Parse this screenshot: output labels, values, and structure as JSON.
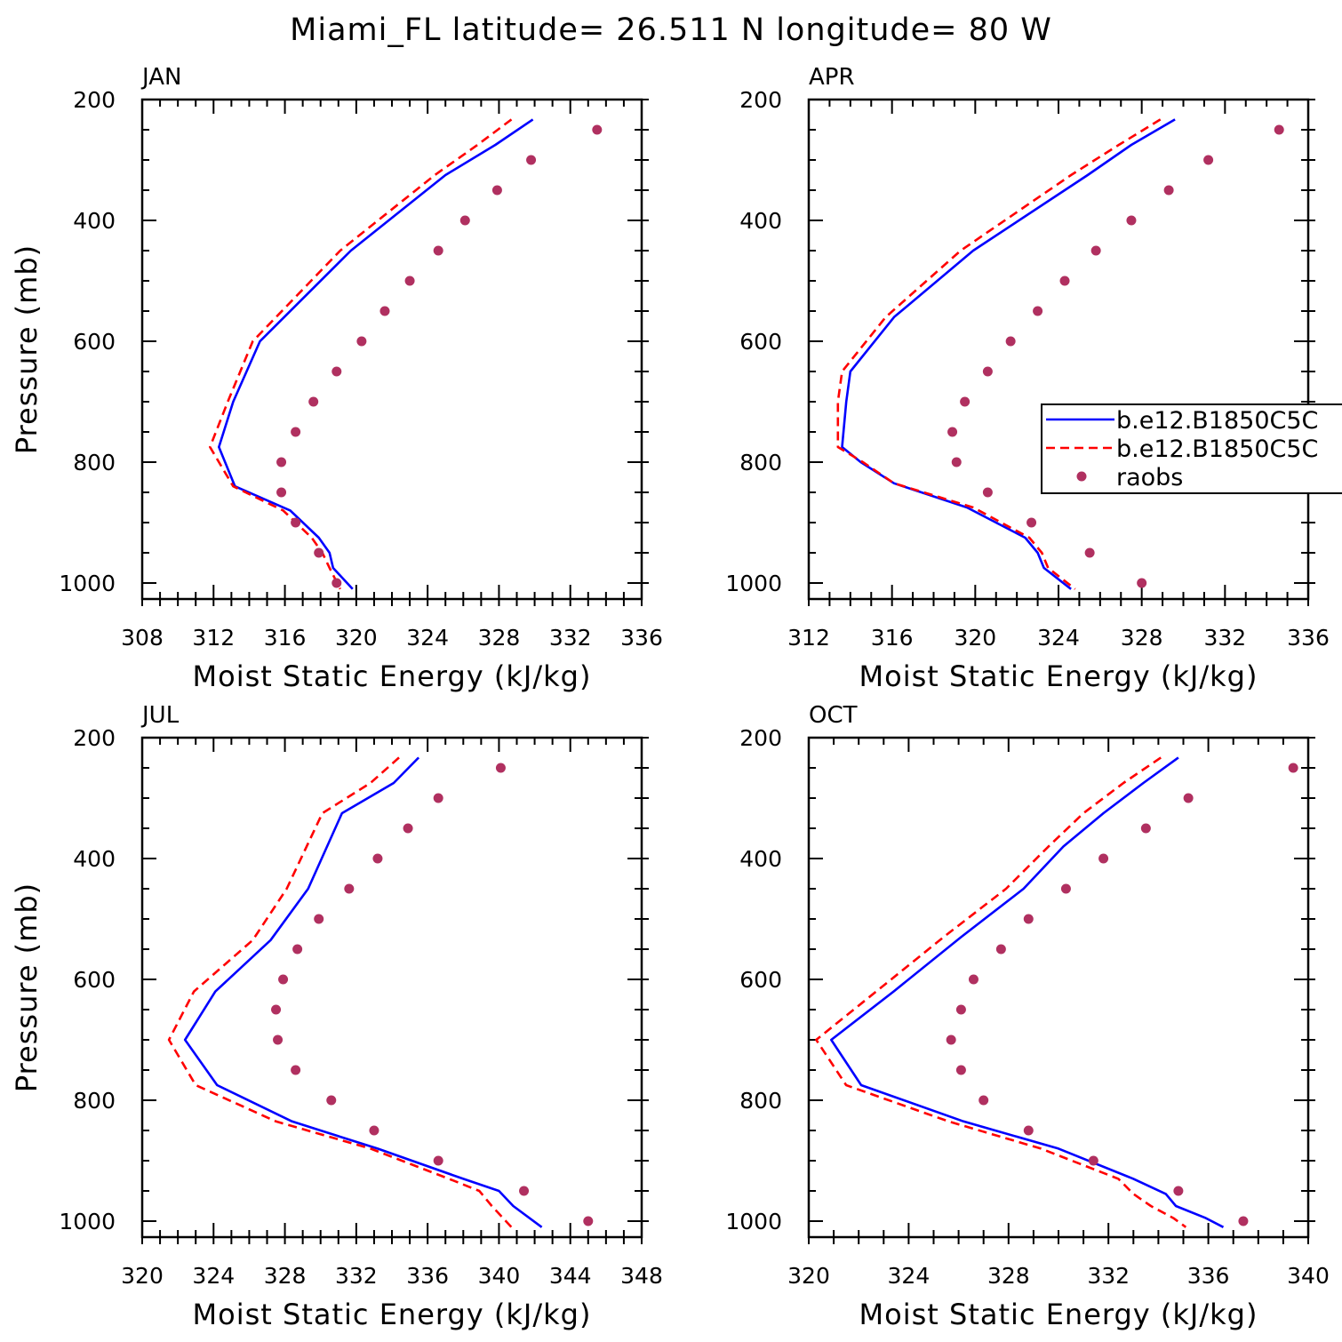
{
  "title": "Miami_FL  latitude= 26.511 N longitude= 80 W",
  "colors": {
    "model1": "#0000ff",
    "model2": "#ff0000",
    "raobs": "#b03060",
    "axes": "#000000"
  },
  "chart_data": [
    {
      "type": "line",
      "panel": "JAN",
      "xlabel": "Moist Static Energy (kJ/kg)",
      "ylabel": "Pressure (mb)",
      "xlim": [
        308,
        336
      ],
      "ylim": [
        200,
        1025
      ],
      "y_inverted": true,
      "xticks": [
        308,
        312,
        316,
        320,
        324,
        328,
        332,
        336
      ],
      "yticks": [
        200,
        400,
        600,
        800,
        1000
      ],
      "series": [
        {
          "kind": "solid-line",
          "color": "#0000ff",
          "x": [
            329.9,
            327.8,
            325.0,
            319.7,
            314.6,
            313.1,
            312.3,
            313.2,
            316.3,
            317.9,
            318.5,
            318.7,
            319.8
          ],
          "y": [
            233,
            275,
            325,
            450,
            600,
            700,
            775,
            840,
            880,
            925,
            950,
            975,
            1010
          ]
        },
        {
          "kind": "dashed-line",
          "color": "#ff0000",
          "x": [
            328.7,
            326.8,
            324.4,
            319.1,
            314.2,
            312.8,
            311.8,
            313.1,
            315.9,
            317.5,
            318.1,
            318.5,
            319.1
          ],
          "y": [
            233,
            275,
            325,
            450,
            600,
            700,
            775,
            840,
            880,
            925,
            950,
            975,
            1010
          ]
        },
        {
          "name": "raobs",
          "kind": "points",
          "color": "#b03060",
          "x": [
            333.5,
            329.8,
            327.9,
            326.1,
            324.6,
            323.0,
            321.6,
            320.3,
            318.9,
            317.6,
            316.6,
            315.8,
            315.8,
            316.6,
            317.9,
            318.9
          ],
          "y": [
            250,
            300,
            350,
            400,
            450,
            500,
            550,
            600,
            650,
            700,
            750,
            800,
            850,
            900,
            950,
            1000
          ]
        }
      ]
    },
    {
      "type": "line",
      "panel": "APR",
      "xlabel": "Moist Static Energy (kJ/kg)",
      "ylabel": "",
      "xlim": [
        312,
        336
      ],
      "ylim": [
        200,
        1025
      ],
      "y_inverted": true,
      "xticks": [
        312,
        316,
        320,
        324,
        328,
        332,
        336
      ],
      "yticks": [
        200,
        400,
        600,
        800,
        1000
      ],
      "legend": {
        "placement": "right",
        "entries": [
          {
            "label": "b.e12.B1850C5C",
            "kind": "solid-line",
            "color": "#0000ff"
          },
          {
            "label": "b.e12.B1850C5C",
            "kind": "dashed-line",
            "color": "#ff0000"
          },
          {
            "label": "raobs",
            "kind": "points",
            "color": "#b03060"
          }
        ]
      },
      "series": [
        {
          "kind": "solid-line",
          "color": "#0000ff",
          "x": [
            329.6,
            327.5,
            325.4,
            319.9,
            316.1,
            314.0,
            313.8,
            313.6,
            314.5,
            316.1,
            319.6,
            322.4,
            323.0,
            323.3,
            324.6
          ],
          "y": [
            233,
            275,
            325,
            450,
            560,
            650,
            700,
            775,
            800,
            835,
            875,
            925,
            950,
            975,
            1010
          ]
        },
        {
          "kind": "dashed-line",
          "color": "#ff0000",
          "x": [
            328.9,
            326.9,
            324.6,
            319.3,
            315.7,
            313.6,
            313.4,
            313.4,
            314.6,
            316.1,
            319.9,
            322.6,
            323.2,
            323.5,
            324.8
          ],
          "y": [
            233,
            275,
            325,
            450,
            560,
            650,
            700,
            775,
            800,
            835,
            875,
            925,
            950,
            975,
            1010
          ]
        },
        {
          "name": "raobs",
          "kind": "points",
          "color": "#b03060",
          "x": [
            334.6,
            331.2,
            329.3,
            327.5,
            325.8,
            324.3,
            323.0,
            321.7,
            320.6,
            319.5,
            318.9,
            319.1,
            320.6,
            322.7,
            325.5,
            328.0
          ],
          "y": [
            250,
            300,
            350,
            400,
            450,
            500,
            550,
            600,
            650,
            700,
            750,
            800,
            850,
            900,
            950,
            1000
          ]
        }
      ]
    },
    {
      "type": "line",
      "panel": "JUL",
      "xlabel": "Moist Static Energy (kJ/kg)",
      "ylabel": "Pressure (mb)",
      "xlim": [
        320,
        348
      ],
      "ylim": [
        200,
        1025
      ],
      "y_inverted": true,
      "xticks": [
        320,
        324,
        328,
        332,
        336,
        340,
        344,
        348
      ],
      "yticks": [
        200,
        400,
        600,
        800,
        1000
      ],
      "series": [
        {
          "kind": "solid-line",
          "color": "#0000ff",
          "x": [
            335.5,
            334.1,
            331.2,
            329.3,
            327.2,
            324.1,
            322.4,
            324.2,
            328.4,
            333.2,
            338.0,
            340.0,
            340.8,
            342.4
          ],
          "y": [
            233,
            275,
            325,
            450,
            535,
            620,
            700,
            775,
            835,
            880,
            930,
            950,
            975,
            1010
          ]
        },
        {
          "kind": "dashed-line",
          "color": "#ff0000",
          "x": [
            334.4,
            332.8,
            330.1,
            328.1,
            326.2,
            322.9,
            321.5,
            323.0,
            327.5,
            332.8,
            337.2,
            338.9,
            339.6,
            340.7
          ],
          "y": [
            233,
            275,
            325,
            450,
            535,
            620,
            700,
            775,
            835,
            880,
            930,
            950,
            975,
            1010
          ]
        },
        {
          "name": "raobs",
          "kind": "points",
          "color": "#b03060",
          "x": [
            340.1,
            336.6,
            334.9,
            333.2,
            331.6,
            329.9,
            328.7,
            327.9,
            327.5,
            327.6,
            328.6,
            330.6,
            333.0,
            336.6,
            341.4,
            345.0
          ],
          "y": [
            250,
            300,
            350,
            400,
            450,
            500,
            550,
            600,
            650,
            700,
            750,
            800,
            850,
            900,
            950,
            1000
          ]
        }
      ]
    },
    {
      "type": "line",
      "panel": "OCT",
      "xlabel": "Moist Static Energy (kJ/kg)",
      "ylabel": "",
      "xlim": [
        320,
        340
      ],
      "ylim": [
        200,
        1025
      ],
      "y_inverted": true,
      "xticks": [
        320,
        324,
        328,
        332,
        336,
        340
      ],
      "yticks": [
        200,
        400,
        600,
        800,
        1000
      ],
      "series": [
        {
          "kind": "solid-line",
          "color": "#0000ff",
          "x": [
            334.8,
            333.4,
            331.8,
            330.2,
            328.6,
            326.1,
            323.4,
            320.9,
            322.1,
            326.2,
            330.0,
            333.0,
            334.3,
            334.7,
            335.9,
            336.6
          ],
          "y": [
            233,
            275,
            325,
            380,
            450,
            530,
            620,
            700,
            775,
            835,
            880,
            930,
            955,
            975,
            995,
            1010
          ]
        },
        {
          "kind": "dashed-line",
          "color": "#ff0000",
          "x": [
            334.1,
            332.6,
            331.0,
            329.6,
            327.9,
            325.4,
            322.7,
            320.3,
            321.5,
            325.6,
            329.3,
            332.4,
            333.0,
            333.7,
            334.6,
            335.1
          ],
          "y": [
            233,
            275,
            325,
            380,
            450,
            530,
            620,
            700,
            775,
            835,
            880,
            930,
            955,
            975,
            995,
            1010
          ]
        },
        {
          "name": "raobs",
          "kind": "points",
          "color": "#b03060",
          "x": [
            339.4,
            335.2,
            333.5,
            331.8,
            330.3,
            328.8,
            327.7,
            326.6,
            326.1,
            325.7,
            326.1,
            327.0,
            328.8,
            331.4,
            334.8,
            337.4
          ],
          "y": [
            250,
            300,
            350,
            400,
            450,
            500,
            550,
            600,
            650,
            700,
            750,
            800,
            850,
            900,
            950,
            1000
          ]
        }
      ]
    }
  ]
}
